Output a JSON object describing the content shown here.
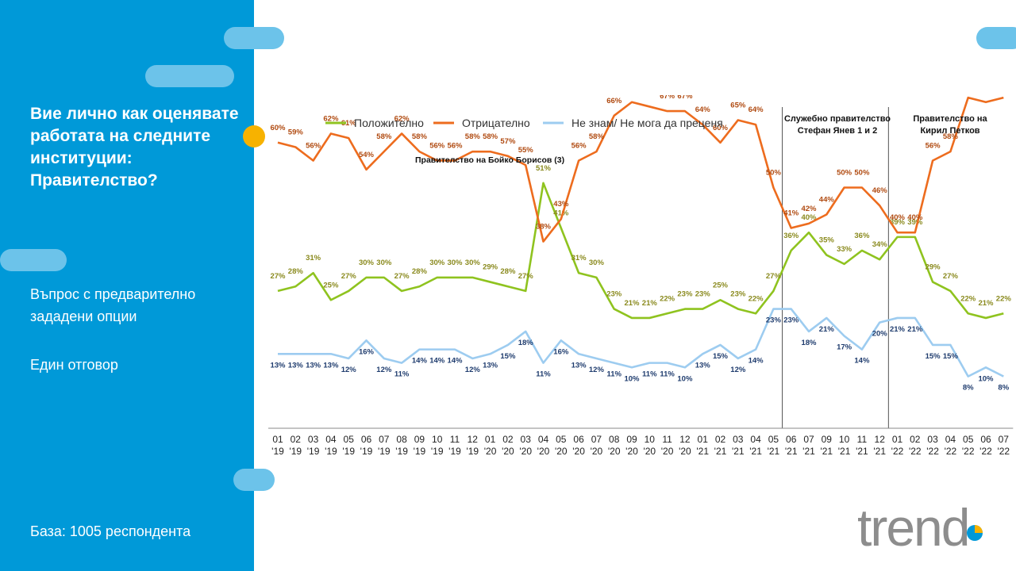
{
  "sidebar": {
    "question": "Вие лично как оценявате работата на следните институции: Правителство?",
    "note1": "Въпрос с предварително зададени опции",
    "note2": "Един отговор",
    "base": "База:  1005 респондента"
  },
  "logo": {
    "text": "trend"
  },
  "colors": {
    "sidebar": "#0099d8",
    "pill": "#6cc3ea",
    "dot": "#f7b200",
    "positive": "#8fc31f",
    "negative": "#ed6c1e",
    "dontknow": "#9dccf0"
  },
  "chart_data": {
    "type": "line",
    "x": [
      "01 '19",
      "02 '19",
      "03 '19",
      "04 '19",
      "05 '19",
      "06 '19",
      "07 '19",
      "08 '19",
      "09 '19",
      "10 '19",
      "11 '19",
      "12 '19",
      "01 '20",
      "02 '20",
      "03 '20",
      "04 '20",
      "05 '20",
      "06 '20",
      "07 '20",
      "08 '20",
      "09 '20",
      "10 '20",
      "11 '20",
      "12 '20",
      "01 '21",
      "02 '21",
      "03 '21",
      "04 '21",
      "05 '21",
      "06 '21",
      "07 '21",
      "09 '21",
      "10 '21",
      "11 '21",
      "12 '21",
      "01 '22",
      "02 '22",
      "03 '22",
      "04 '22",
      "05 '22",
      "06 '22",
      "07 '22"
    ],
    "ylim": [
      0,
      80
    ],
    "series": [
      {
        "name": "Положително",
        "color": "#8fc31f",
        "label_color": "#8a8a1e",
        "values": [
          27,
          28,
          31,
          25,
          27,
          30,
          30,
          27,
          28,
          30,
          30,
          30,
          29,
          28,
          27,
          51,
          41,
          31,
          30,
          23,
          21,
          21,
          22,
          23,
          23,
          25,
          23,
          22,
          27,
          36,
          40,
          35,
          33,
          36,
          34,
          39,
          39,
          29,
          27,
          22,
          21,
          22
        ]
      },
      {
        "name": "Отрицателно",
        "color": "#ed6c1e",
        "label_color": "#b04a10",
        "values": [
          60,
          59,
          56,
          62,
          61,
          54,
          58,
          62,
          58,
          56,
          56,
          58,
          58,
          57,
          55,
          38,
          43,
          56,
          58,
          66,
          69,
          68,
          67,
          67,
          64,
          60,
          65,
          64,
          50,
          41,
          42,
          44,
          50,
          50,
          46,
          40,
          40,
          56,
          58,
          70,
          69,
          70
        ]
      },
      {
        "name": "Не знам/ Не мога да преценя",
        "color": "#9dccf0",
        "label_color": "#1f3c6e",
        "values": [
          13,
          13,
          13,
          13,
          12,
          16,
          12,
          11,
          14,
          14,
          14,
          12,
          13,
          15,
          18,
          11,
          16,
          13,
          12,
          11,
          10,
          11,
          11,
          10,
          13,
          15,
          12,
          14,
          23,
          23,
          18,
          21,
          17,
          14,
          20,
          21,
          21,
          15,
          15,
          8,
          10,
          8
        ]
      }
    ],
    "legend_position": "top",
    "annotations": [
      {
        "text": "Правителство  на Бойко Борисов  (3)"
      },
      {
        "text": "Служебно правителство",
        "text2": "Стефан Янев  1 и 2"
      },
      {
        "text": "Правителство  на",
        "text2": "Кирил  Петков"
      }
    ]
  }
}
